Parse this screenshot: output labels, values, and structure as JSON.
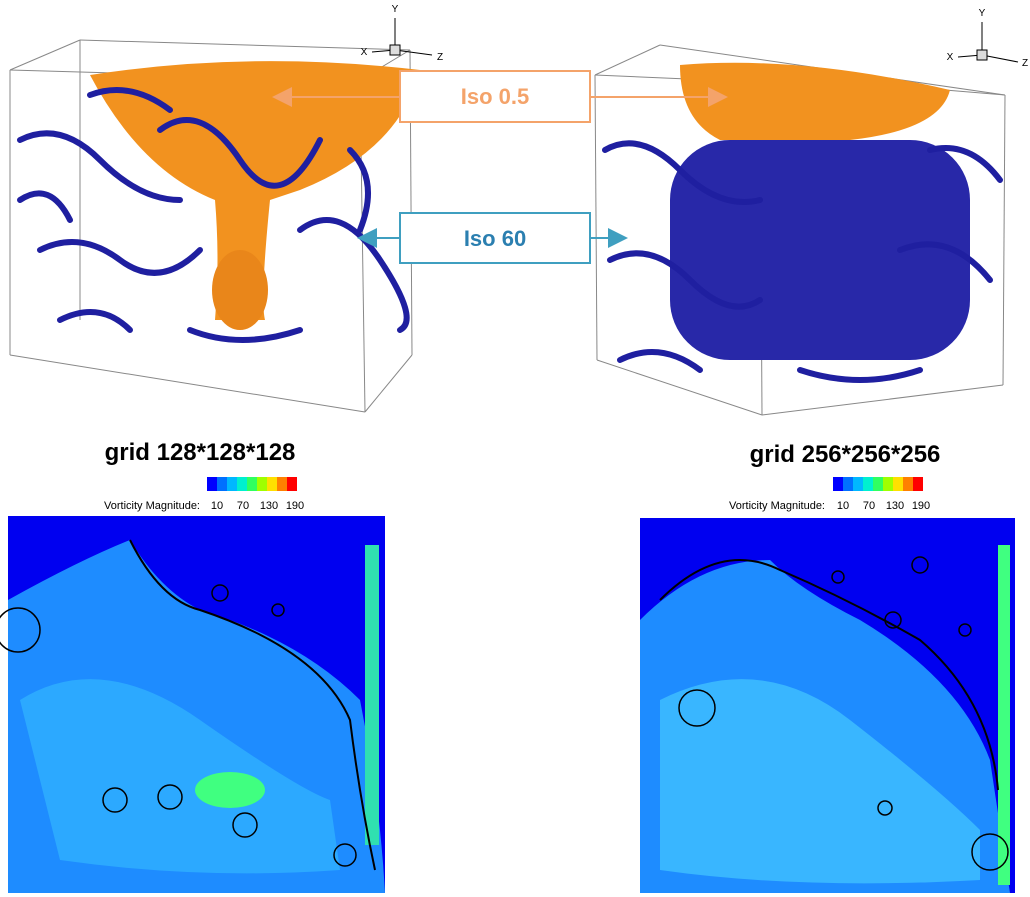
{
  "figures": [
    {
      "caption": "grid 128*128*128",
      "axes": {
        "x": "X",
        "y": "Y",
        "z": "Z"
      },
      "colorbar": {
        "label": "Vorticity Magnitude:",
        "ticks": [
          "10",
          "70",
          "130",
          "190"
        ]
      }
    },
    {
      "caption": "grid 256*256*256",
      "axes": {
        "x": "X",
        "y": "Y",
        "z": "Z"
      },
      "colorbar": {
        "label": "Vorticity Magnitude:",
        "ticks": [
          "10",
          "70",
          "130",
          "190"
        ]
      }
    }
  ],
  "callouts": [
    {
      "label": "Iso 0.5"
    },
    {
      "label": "Iso 60"
    }
  ]
}
